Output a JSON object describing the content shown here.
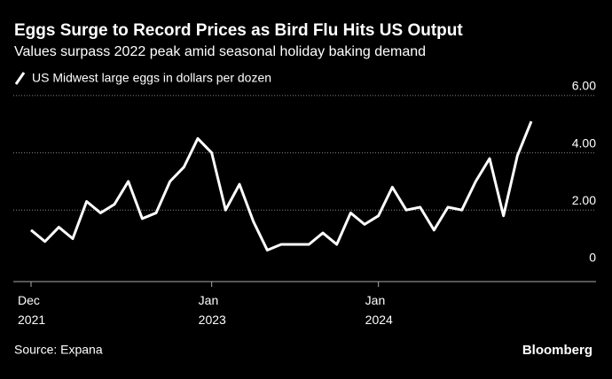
{
  "chart_data": {
    "type": "line",
    "title": "Eggs Surge to Record Prices as Bird Flu Hits US Output",
    "subtitle": "Values surpass 2022 peak amid seasonal holiday baking demand",
    "source": "Source: Expana",
    "brand": "Bloomberg",
    "categories": [
      "Dec\n2021",
      null,
      null,
      null,
      null,
      null,
      null,
      null,
      null,
      null,
      null,
      null,
      null,
      "Jan\n2023",
      null,
      null,
      null,
      null,
      null,
      null,
      null,
      null,
      null,
      null,
      null,
      "Jan\n2024",
      null,
      null,
      null,
      null,
      null,
      null,
      null,
      null,
      null,
      null,
      null
    ],
    "series": [
      {
        "name": "US Midwest large eggs in dollars per dozen",
        "color": "#ffffff",
        "values": [
          1.3,
          0.9,
          1.4,
          1.0,
          2.3,
          1.9,
          2.2,
          3.0,
          1.7,
          1.9,
          3.0,
          3.5,
          4.5,
          4.0,
          2.0,
          2.9,
          1.6,
          0.6,
          0.8,
          0.8,
          0.8,
          1.2,
          0.8,
          1.9,
          1.5,
          1.8,
          2.8,
          2.0,
          2.1,
          1.3,
          2.1,
          2.0,
          3.0,
          3.8,
          1.8,
          3.9,
          5.1
        ]
      }
    ],
    "ylim": [
      -0.5,
      6.4
    ],
    "yticks": [
      0,
      {
        "value": 2,
        "label": "2.00"
      },
      {
        "value": 4,
        "label": "4.00"
      },
      {
        "value": 6,
        "label": "6.00"
      }
    ],
    "grid": true
  }
}
